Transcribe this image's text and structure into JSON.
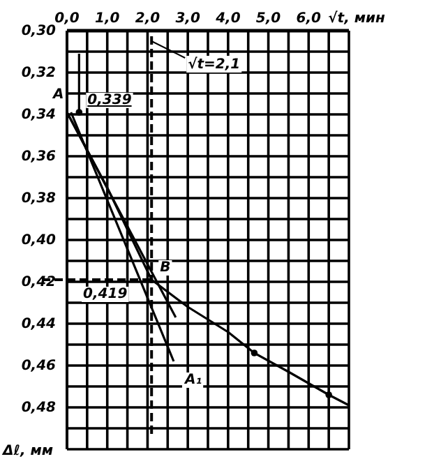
{
  "chart_data": {
    "type": "line",
    "xlabel": "√t, мин",
    "ylabel": "Δℓ, мм",
    "xlim": [
      0,
      7
    ],
    "ylim": [
      0.5,
      0.3
    ],
    "xticks": [
      {
        "value": 0,
        "label": "0,0"
      },
      {
        "value": 1,
        "label": "1,0"
      },
      {
        "value": 2,
        "label": "2,0"
      },
      {
        "value": 3,
        "label": "3,0"
      },
      {
        "value": 4,
        "label": "4,0"
      },
      {
        "value": 5,
        "label": "5,0"
      },
      {
        "value": 6,
        "label": "6,0"
      }
    ],
    "yticks": [
      {
        "value": 0.3,
        "label": "0,30"
      },
      {
        "value": 0.32,
        "label": "0,32"
      },
      {
        "value": 0.34,
        "label": "0,34"
      },
      {
        "value": 0.36,
        "label": "0,36"
      },
      {
        "value": 0.38,
        "label": "0,38"
      },
      {
        "value": 0.4,
        "label": "0,40"
      },
      {
        "value": 0.42,
        "label": "0,42"
      },
      {
        "value": 0.44,
        "label": "0,44"
      },
      {
        "value": 0.46,
        "label": "0,46"
      },
      {
        "value": 0.48,
        "label": "0,48"
      }
    ],
    "grid": true,
    "series": [
      {
        "color": "#000000",
        "x": [
          0,
          1,
          2.1,
          3,
          4,
          4.65,
          5.5,
          6.5,
          7
        ],
        "values": [
          0.339,
          0.375,
          0.419,
          0.432,
          0.444,
          0.454,
          0.463,
          0.474,
          0.479
        ]
      },
      {
        "color": "#000000",
        "x": [
          0,
          2.7
        ],
        "values": [
          0.339,
          0.437
        ]
      },
      {
        "color": "#000000",
        "x": [
          0.1,
          2.65
        ],
        "values": [
          0.339,
          0.458
        ]
      },
      {
        "color": "#000000",
        "x": [
          0.3,
          0.3
        ],
        "values": [
          0.311,
          0.339
        ]
      },
      {
        "type": "scatter",
        "color": "#000000",
        "x": [
          0.3,
          4.65,
          6.5
        ],
        "values": [
          0.339,
          0.454,
          0.474
        ],
        "marker": "circle"
      }
    ],
    "ref_lines": [
      {
        "axis": "x",
        "value": 2.1,
        "label": "√t=2,1",
        "line_style": "dashed"
      },
      {
        "axis": "y",
        "value": 0.419,
        "label": "0,419",
        "line_style": "dashed"
      }
    ],
    "annotations": [
      {
        "text": "A",
        "x": 0,
        "y": 0.339
      },
      {
        "text": "0,339",
        "x": 0.3,
        "y": 0.339
      },
      {
        "text": "B",
        "x": 2.1,
        "y": 0.419
      },
      {
        "text": "A₁",
        "x": 2.65,
        "y": 0.458
      }
    ]
  }
}
